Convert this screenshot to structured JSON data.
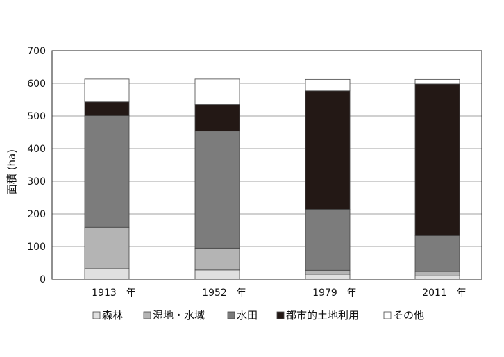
{
  "chart_data": {
    "type": "bar",
    "stacked": true,
    "categories": [
      "1913　年",
      "1952　年",
      "1979　年",
      "2011　年"
    ],
    "series": [
      {
        "name": "森林",
        "color": "#e0e0e0",
        "values": [
          32,
          28,
          15,
          10
        ]
      },
      {
        "name": "湿地・水域",
        "color": "#b4b4b4",
        "values": [
          127,
          67,
          12,
          13
        ]
      },
      {
        "name": "水田",
        "color": "#7c7c7c",
        "values": [
          342,
          359,
          187,
          110
        ]
      },
      {
        "name": "都市的土地利用",
        "color": "#231815",
        "values": [
          42,
          81,
          363,
          465
        ]
      },
      {
        "name": "その他",
        "color": "#ffffff",
        "values": [
          70,
          78,
          35,
          14
        ]
      }
    ],
    "title": "",
    "xlabel": "",
    "ylabel": "面積 (ha)",
    "ylim": [
      0,
      700
    ],
    "yticks": [
      0,
      100,
      200,
      300,
      400,
      500,
      600,
      700
    ],
    "grid": true,
    "legend": "bottom"
  }
}
